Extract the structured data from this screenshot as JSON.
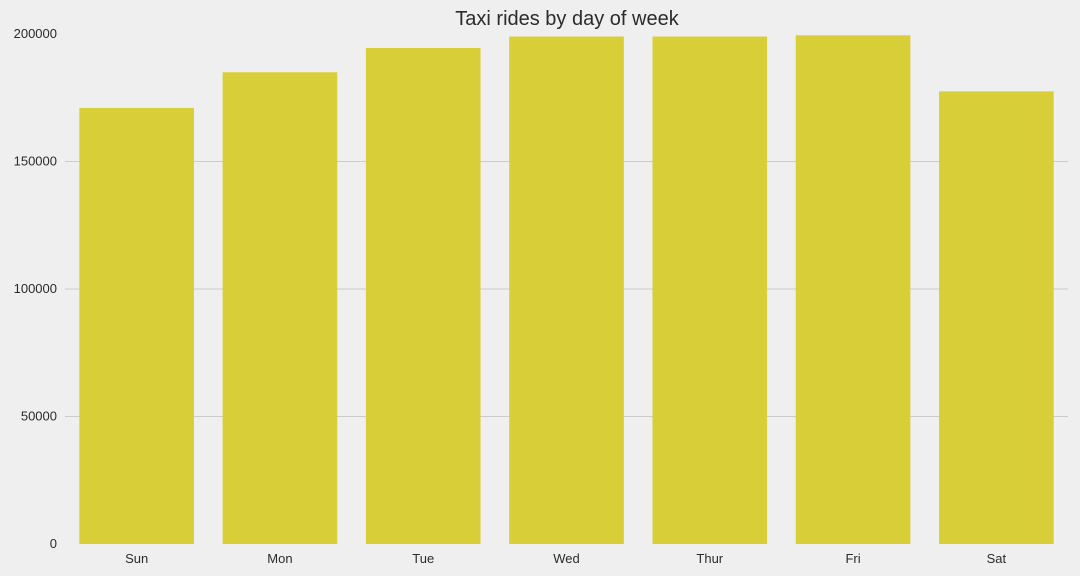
{
  "chart_data": {
    "type": "bar",
    "title": "Taxi rides by day of week",
    "xlabel": "",
    "ylabel": "",
    "categories": [
      "Sun",
      "Mon",
      "Tue",
      "Wed",
      "Thur",
      "Fri",
      "Sat"
    ],
    "values": [
      171000,
      185000,
      194500,
      199000,
      199000,
      199500,
      177500
    ],
    "ylim": [
      0,
      200000
    ],
    "yticks": [
      "0",
      "50000",
      "100000",
      "150000",
      "200000"
    ],
    "grid": "horizontal",
    "bar_color": "#d8cf38",
    "background_color": "#efefef"
  }
}
